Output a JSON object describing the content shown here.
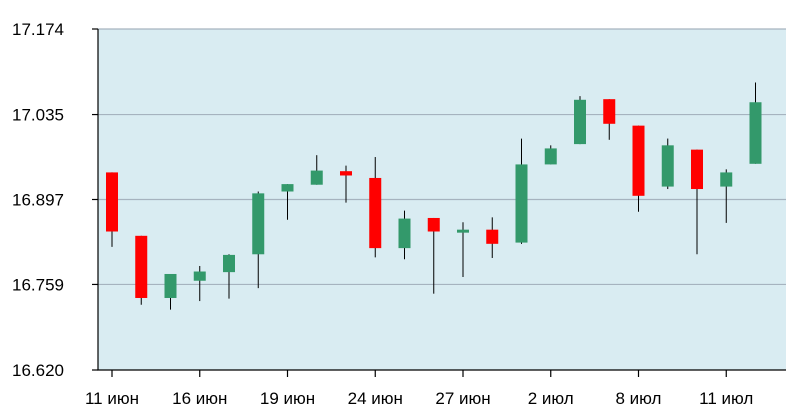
{
  "chart_data": {
    "type": "candlestick",
    "title": "",
    "xlabel": "",
    "ylabel": "",
    "ylim": [
      16.62,
      17.174
    ],
    "yticks": [
      "16.620",
      "16.759",
      "16.897",
      "17.035",
      "17.174"
    ],
    "xticks": [
      {
        "label": "11 июн",
        "index": 0
      },
      {
        "label": "16 июн",
        "index": 3
      },
      {
        "label": "19 июн",
        "index": 6
      },
      {
        "label": "24 июн",
        "index": 9
      },
      {
        "label": "27 июн",
        "index": 12
      },
      {
        "label": "2 июл",
        "index": 15
      },
      {
        "label": "8 июл",
        "index": 18
      },
      {
        "label": "11 июл",
        "index": 21
      }
    ],
    "grid": true,
    "colors": {
      "plot_background": "#d9ecf2",
      "gridline": "#a6b3bf",
      "axis": "#000000",
      "up": "#33996b",
      "down": "#ff0000",
      "wick": "#000000"
    },
    "candles": [
      {
        "open": 16.941,
        "high": 16.941,
        "low": 16.82,
        "close": 16.845
      },
      {
        "open": 16.838,
        "high": 16.838,
        "low": 16.726,
        "close": 16.737
      },
      {
        "open": 16.737,
        "high": 16.772,
        "low": 16.718,
        "close": 16.776
      },
      {
        "open": 16.765,
        "high": 16.789,
        "low": 16.732,
        "close": 16.78
      },
      {
        "open": 16.779,
        "high": 16.808,
        "low": 16.736,
        "close": 16.807
      },
      {
        "open": 16.808,
        "high": 16.91,
        "low": 16.753,
        "close": 16.907
      },
      {
        "open": 16.91,
        "high": 16.922,
        "low": 16.864,
        "close": 16.922
      },
      {
        "open": 16.921,
        "high": 16.969,
        "low": 16.921,
        "close": 16.944
      },
      {
        "open": 16.943,
        "high": 16.952,
        "low": 16.892,
        "close": 16.936
      },
      {
        "open": 16.932,
        "high": 16.966,
        "low": 16.803,
        "close": 16.818
      },
      {
        "open": 16.818,
        "high": 16.879,
        "low": 16.8,
        "close": 16.866
      },
      {
        "open": 16.867,
        "high": 16.867,
        "low": 16.744,
        "close": 16.845
      },
      {
        "open": 16.845,
        "high": 16.86,
        "low": 16.771,
        "close": 16.848
      },
      {
        "open": 16.848,
        "high": 16.868,
        "low": 16.802,
        "close": 16.825
      },
      {
        "open": 16.827,
        "high": 16.996,
        "low": 16.825,
        "close": 16.954
      },
      {
        "open": 16.954,
        "high": 16.985,
        "low": 16.954,
        "close": 16.98
      },
      {
        "open": 16.987,
        "high": 17.065,
        "low": 16.987,
        "close": 17.059
      },
      {
        "open": 17.06,
        "high": 17.06,
        "low": 16.994,
        "close": 17.02
      },
      {
        "open": 17.017,
        "high": 17.017,
        "low": 16.877,
        "close": 16.903
      },
      {
        "open": 16.918,
        "high": 16.996,
        "low": 16.914,
        "close": 16.985
      },
      {
        "open": 16.978,
        "high": 16.978,
        "low": 16.808,
        "close": 16.914
      },
      {
        "open": 16.918,
        "high": 16.946,
        "low": 16.859,
        "close": 16.941
      },
      {
        "open": 16.955,
        "high": 17.087,
        "low": 16.955,
        "close": 17.055
      }
    ]
  }
}
